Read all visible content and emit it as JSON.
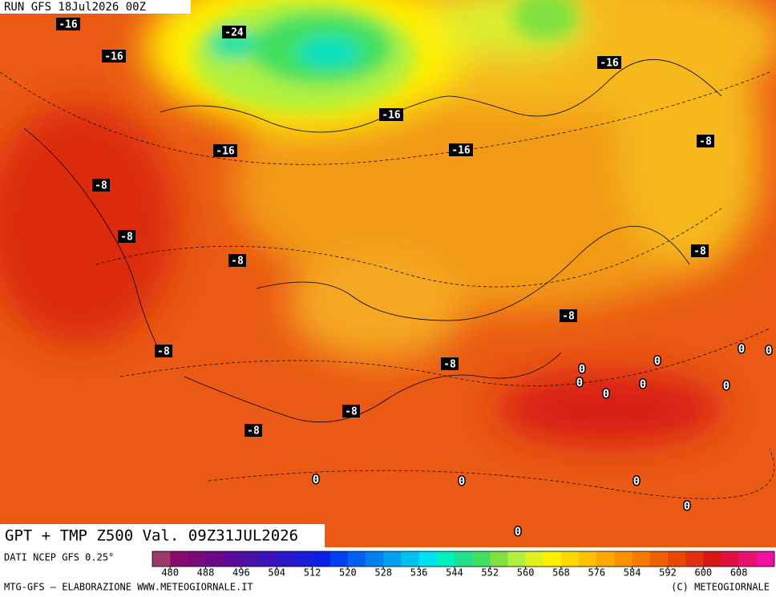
{
  "header": {
    "run": "RUN GFS 18Jul2026 00Z"
  },
  "map": {
    "title": "GPT + TMP Z500 Val. 09Z31JUL2026",
    "contour_labels": [
      "-16",
      "-24",
      "-16",
      "-16",
      "-16",
      "-16",
      "-16",
      "-8",
      "-8",
      "-8",
      "-8",
      "-8",
      "-8",
      "-8",
      "-8",
      "-8",
      "-8",
      "0",
      "0",
      "0",
      "0",
      "0",
      "0",
      "0",
      "0",
      "0",
      "0",
      "0",
      "0",
      "0"
    ]
  },
  "colorbar": {
    "source": "DATI NCEP GFS 0.25°",
    "colors": [
      "#9c3a6a",
      "#8a0a6e",
      "#7a0a7a",
      "#6a0a8a",
      "#5a0a9a",
      "#4a10a8",
      "#3a14b8",
      "#2a18c8",
      "#1a1cd8",
      "#0a20e8",
      "#0040f0",
      "#0060f0",
      "#0080f0",
      "#00a0f0",
      "#00c0f0",
      "#00e0f0",
      "#00f0c0",
      "#20e090",
      "#40e060",
      "#80e040",
      "#b0f040",
      "#e0f020",
      "#fff000",
      "#ffd800",
      "#ffc000",
      "#ffa800",
      "#ff9000",
      "#f87800",
      "#f06000",
      "#e84800",
      "#e03010",
      "#d81818",
      "#e01040",
      "#e81070",
      "#f010a0"
    ],
    "ticks": [
      480,
      488,
      496,
      504,
      512,
      520,
      528,
      536,
      544,
      552,
      560,
      568,
      576,
      584,
      592,
      600,
      608
    ]
  },
  "footer": {
    "left": "MTG-GFS — ELABORAZIONE WWW.METEOGIORNALE.IT",
    "right": "(C) METEOGIORNALE"
  }
}
